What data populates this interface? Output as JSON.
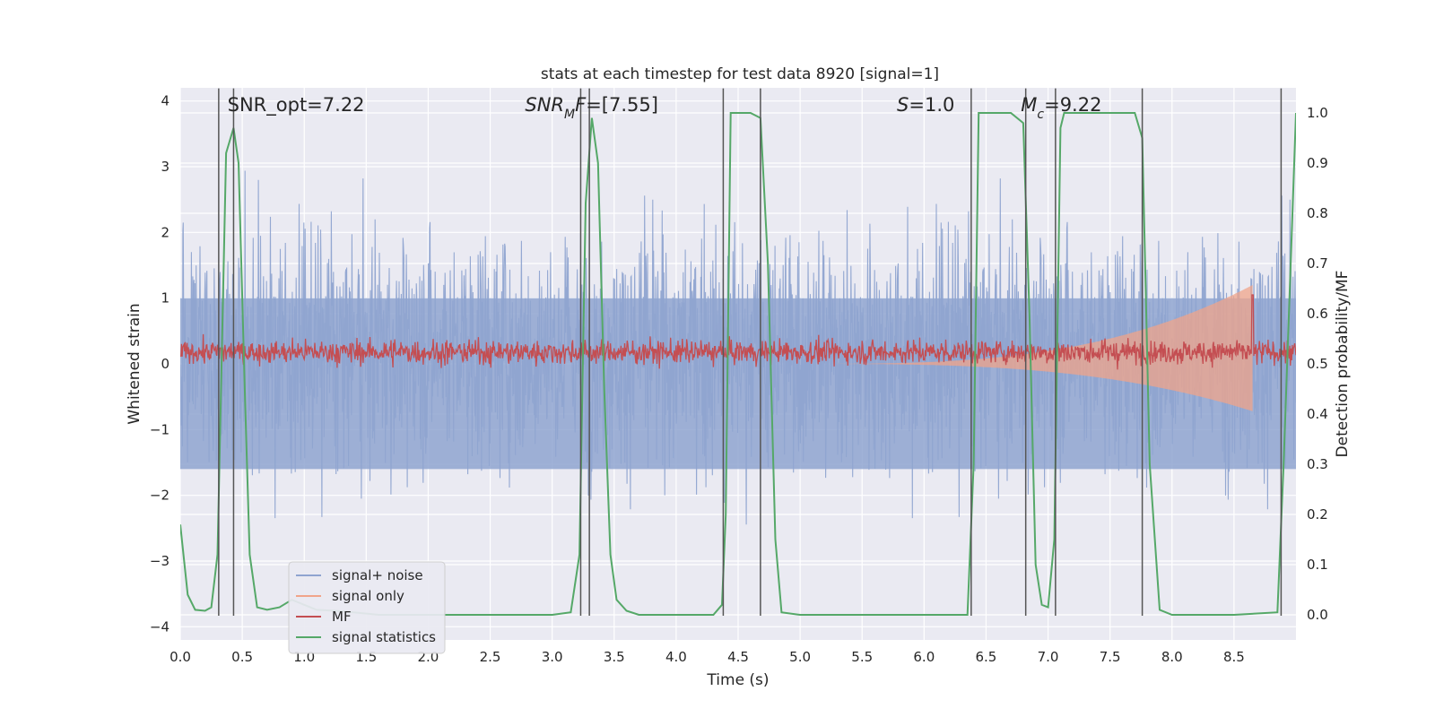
{
  "chart_data": {
    "type": "line",
    "title": "stats at each timestep for test data 8920 [signal=1]",
    "xlabel": "Time (s)",
    "ylabel_left": "Whitened strain",
    "ylabel_right": "Detection probability/MF",
    "xlim": [
      0.0,
      9.0
    ],
    "ylim_left": [
      -4.2,
      4.2
    ],
    "ylim_right": [
      -0.05,
      1.05
    ],
    "xticks": [
      "0.0",
      "0.5",
      "1.0",
      "1.5",
      "2.0",
      "2.5",
      "3.0",
      "3.5",
      "4.0",
      "4.5",
      "5.0",
      "5.5",
      "6.0",
      "6.5",
      "7.0",
      "7.5",
      "8.0",
      "8.5"
    ],
    "xtick_values": [
      0.0,
      0.5,
      1.0,
      1.5,
      2.0,
      2.5,
      3.0,
      3.5,
      4.0,
      4.5,
      5.0,
      5.5,
      6.0,
      6.5,
      7.0,
      7.5,
      8.0,
      8.5
    ],
    "yticks_left": [
      "4",
      "3",
      "2",
      "1",
      "0",
      "−1",
      "−2",
      "−3",
      "−4"
    ],
    "ytick_values_left": [
      4,
      3,
      2,
      1,
      0,
      -1,
      -2,
      -3,
      -4
    ],
    "yticks_right": [
      "1.0",
      "0.9",
      "0.8",
      "0.7",
      "0.6",
      "0.5",
      "0.4",
      "0.3",
      "0.2",
      "0.1",
      "0.0"
    ],
    "ytick_values_right": [
      1.0,
      0.9,
      0.8,
      0.7,
      0.6,
      0.5,
      0.4,
      0.3,
      0.2,
      0.1,
      0.0
    ],
    "annotations": [
      {
        "x": 0.2,
        "y": 3.9,
        "parts": [
          {
            "t": "SNR_opt=7.22",
            "i": false
          }
        ]
      },
      {
        "x": 2.6,
        "y": 3.9,
        "parts": [
          {
            "t": "SNR",
            "i": true
          },
          {
            "t": "M",
            "i": true,
            "sub": true
          },
          {
            "t": "F",
            "i": true
          },
          {
            "t": "=[7.55]",
            "i": false
          }
        ]
      },
      {
        "x": 5.6,
        "y": 3.9,
        "parts": [
          {
            "t": "S",
            "i": true
          },
          {
            "t": "=1.0",
            "i": false
          }
        ]
      },
      {
        "x": 6.6,
        "y": 3.9,
        "parts": [
          {
            "t": "M",
            "i": true
          },
          {
            "t": "c",
            "i": true,
            "sub": true
          },
          {
            "t": "=9.22",
            "i": false
          }
        ]
      }
    ],
    "legend": {
      "placement": "lower-left",
      "entries": [
        {
          "label": "signal+ noise",
          "color": "#8fa4d0"
        },
        {
          "label": "signal only",
          "color": "#f0a48a"
        },
        {
          "label": "MF",
          "color": "#c44e52"
        },
        {
          "label": "signal statistics",
          "color": "#55a868"
        }
      ]
    },
    "series": [
      {
        "name": "signal statistics",
        "axis": "right",
        "color": "#55a868",
        "x": [
          0.0,
          0.06,
          0.12,
          0.2,
          0.25,
          0.3,
          0.37,
          0.43,
          0.47,
          0.52,
          0.56,
          0.62,
          0.7,
          0.8,
          0.9,
          1.0,
          1.1,
          1.25,
          1.4,
          1.6,
          2.0,
          2.5,
          3.0,
          3.15,
          3.22,
          3.27,
          3.32,
          3.37,
          3.42,
          3.47,
          3.52,
          3.6,
          3.7,
          4.0,
          4.3,
          4.37,
          4.4,
          4.44,
          4.6,
          4.68,
          4.74,
          4.8,
          4.85,
          5.0,
          6.0,
          6.35,
          6.4,
          6.44,
          6.5,
          6.7,
          6.8,
          6.85,
          6.9,
          6.95,
          7.0,
          7.05,
          7.1,
          7.13,
          7.2,
          7.5,
          7.7,
          7.76,
          7.82,
          7.9,
          8.0,
          8.5,
          8.85,
          8.9,
          9.0
        ],
        "y": [
          0.18,
          0.04,
          0.01,
          0.008,
          0.015,
          0.12,
          0.92,
          0.97,
          0.9,
          0.45,
          0.12,
          0.015,
          0.01,
          0.015,
          0.03,
          0.02,
          0.01,
          0.008,
          0.005,
          0.0,
          0.0,
          0.0,
          0.0,
          0.005,
          0.12,
          0.82,
          0.99,
          0.9,
          0.45,
          0.12,
          0.03,
          0.008,
          0.0,
          0.0,
          0.0,
          0.02,
          0.2,
          1.0,
          1.0,
          0.99,
          0.7,
          0.15,
          0.005,
          0.0,
          0.0,
          0.0,
          0.3,
          1.0,
          1.0,
          1.0,
          0.98,
          0.6,
          0.1,
          0.02,
          0.015,
          0.15,
          0.97,
          1.0,
          1.0,
          1.0,
          1.0,
          0.95,
          0.3,
          0.01,
          0.0,
          0.0,
          0.005,
          0.3,
          1.0
        ]
      },
      {
        "name": "signal+ noise",
        "axis": "left",
        "color": "#8fa4d0",
        "envelope": [
          -2.6,
          3.8
        ]
      },
      {
        "name": "MF",
        "axis": "left",
        "color": "#c44e52",
        "level": 0.18,
        "spike": {
          "x": 8.65,
          "y": 1.05
        }
      },
      {
        "name": "signal only",
        "axis": "left",
        "color": "#f0a48a",
        "chirp_end": 8.65,
        "chirp_max": 1.2
      }
    ],
    "vertical_lines": [
      0.31,
      0.43,
      3.23,
      3.3,
      4.38,
      4.68,
      6.38,
      6.82,
      7.06,
      7.76,
      8.88
    ]
  }
}
